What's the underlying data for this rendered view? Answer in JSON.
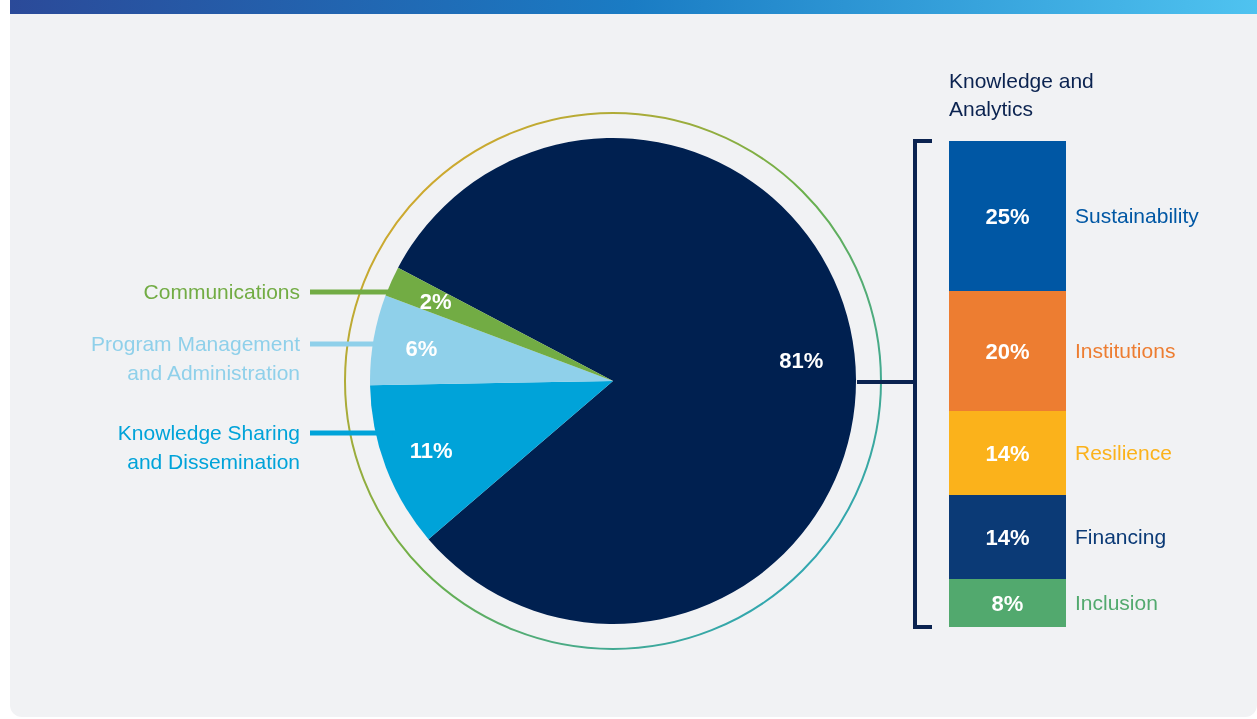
{
  "chart_data": [
    {
      "type": "pie",
      "categories": [
        null,
        "Knowledge Sharing and Dissemination",
        "Program Management and Administration",
        "Communications"
      ],
      "values": [
        81,
        11,
        6,
        2
      ],
      "colors": [
        "#002050",
        "#00a3d9",
        "#8fd0ea",
        "#72ac44"
      ],
      "value_labels": [
        "81%",
        "11%",
        "6%",
        "2%"
      ],
      "legend": "left"
    },
    {
      "type": "bar",
      "title": "Knowledge and Analytics",
      "categories": [
        null
      ],
      "stacked": true,
      "series": [
        {
          "name": "Inclusion",
          "color": "#52a96e",
          "values": [
            8
          ],
          "value_labels": [
            "8%"
          ]
        },
        {
          "name": "Financing",
          "color": "#0b3a76",
          "values": [
            14
          ],
          "value_labels": [
            "14%"
          ]
        },
        {
          "name": "Resilience",
          "color": "#fbb21b",
          "values": [
            14
          ],
          "value_labels": [
            "14%"
          ]
        },
        {
          "name": "Institutions",
          "color": "#ed7d31",
          "values": [
            20
          ],
          "value_labels": [
            "20%"
          ]
        },
        {
          "name": "Sustainability",
          "color": "#0057a4",
          "values": [
            25
          ],
          "value_labels": [
            "25%"
          ]
        }
      ]
    }
  ]
}
